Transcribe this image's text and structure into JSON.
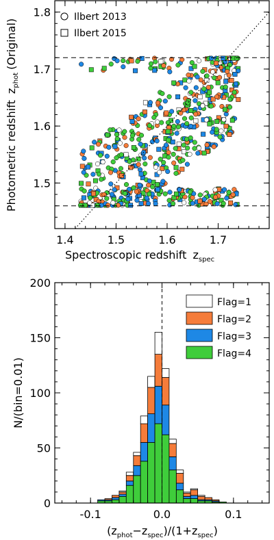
{
  "colors": {
    "flag1": "#ffffff",
    "flag2": "#f57c3a",
    "flag3": "#1e88e5",
    "flag4": "#3fcd3b",
    "frame": "#000000"
  },
  "chart_data": [
    {
      "type": "scatter",
      "title": "",
      "xlabel": "Spectroscopic redshift",
      "xlabel_sub": "spec",
      "ylabel": "Photometric redshift",
      "ylabel_sub": "phot",
      "ylabel_suffix": "(Original)",
      "xlim": [
        1.38,
        1.8
      ],
      "ylim": [
        1.42,
        1.82
      ],
      "xticks": [
        1.4,
        1.5,
        1.6,
        1.7
      ],
      "yticks": [
        1.5,
        1.6,
        1.7,
        1.8
      ],
      "xtick_labels": [
        "1.4",
        "1.5",
        "1.6",
        "1.7"
      ],
      "ytick_labels": [
        "1.5",
        "1.6",
        "1.7",
        "1.8"
      ],
      "hlines": [
        1.46,
        1.72
      ],
      "one_to_one_line": true,
      "grid": false,
      "legend_position": "top-left",
      "legend": [
        {
          "marker": "circle",
          "label": "Ilbert 2013"
        },
        {
          "marker": "square",
          "label": "Ilbert 2015"
        }
      ],
      "n_points_approx": 700,
      "x_range_of_points": [
        1.43,
        1.75
      ],
      "y_range_of_points": [
        1.46,
        1.72
      ],
      "series": [
        {
          "flag": 1,
          "color": "#ffffff"
        },
        {
          "flag": 2,
          "color": "#f57c3a"
        },
        {
          "flag": 3,
          "color": "#1e88e5"
        },
        {
          "flag": 4,
          "color": "#3fcd3b"
        }
      ]
    },
    {
      "type": "bar",
      "stacked": true,
      "histogram": true,
      "title": "",
      "xlabel": "(z_phot - z_spec)/(1+z_spec)",
      "ylabel": "N/(bin=0.01)",
      "xlim": [
        -0.15,
        0.15
      ],
      "ylim": [
        0,
        200
      ],
      "xticks": [
        -0.1,
        0.0,
        0.1
      ],
      "yticks": [
        0,
        50,
        100,
        150,
        200
      ],
      "xtick_labels": [
        "-0.1",
        "0.0",
        "0.1"
      ],
      "ytick_labels": [
        "0",
        "50",
        "100",
        "150",
        "200"
      ],
      "vline": 0.0,
      "legend_position": "top-right",
      "bin_width": 0.01,
      "bin_centers": [
        -0.085,
        -0.075,
        -0.065,
        -0.055,
        -0.045,
        -0.035,
        -0.025,
        -0.015,
        -0.005,
        0.005,
        0.015,
        0.025,
        0.035,
        0.045,
        0.055,
        0.065,
        0.075,
        0.085
      ],
      "series": [
        {
          "name": "Flag=4",
          "color": "#3fcd3b",
          "values": [
            2,
            2,
            3,
            6,
            16,
            25,
            38,
            55,
            72,
            62,
            30,
            12,
            4,
            4,
            2,
            2,
            1,
            1
          ]
        },
        {
          "name": "Flag=3",
          "color": "#1e88e5",
          "values": [
            1,
            1,
            2,
            2,
            4,
            9,
            17,
            26,
            34,
            27,
            12,
            6,
            2,
            3,
            1,
            1,
            1,
            0
          ]
        },
        {
          "name": "Flag=2",
          "color": "#f57c3a",
          "values": [
            0,
            1,
            2,
            2,
            5,
            9,
            17,
            24,
            29,
            25,
            12,
            9,
            3,
            5,
            3,
            2,
            1,
            0
          ]
        },
        {
          "name": "Flag=1",
          "color": "#ffffff",
          "values": [
            0,
            0,
            0,
            1,
            3,
            3,
            7,
            10,
            20,
            8,
            4,
            3,
            1,
            1,
            1,
            0,
            0,
            0
          ]
        }
      ],
      "legend": [
        "Flag=1",
        "Flag=2",
        "Flag=3",
        "Flag=4"
      ]
    }
  ]
}
